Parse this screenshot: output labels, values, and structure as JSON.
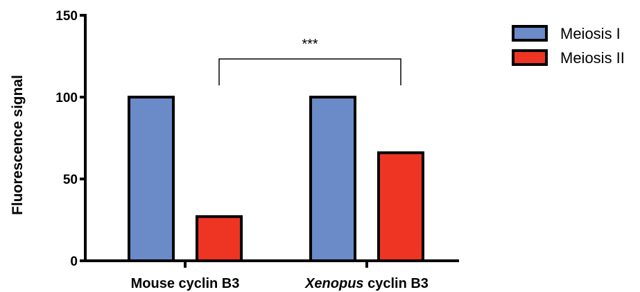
{
  "chart_data": {
    "type": "bar",
    "ylabel": "Fluorescence signal",
    "xlabel": "",
    "ylim": [
      0,
      150
    ],
    "yticks": [
      0,
      50,
      100,
      150
    ],
    "categories": [
      {
        "prefix_italic": "",
        "text": "Mouse cyclin B3"
      },
      {
        "prefix_italic": "Xenopus",
        "text": " cyclin B3"
      }
    ],
    "series": [
      {
        "name": "Meiosis I",
        "color": "#6a8ac8",
        "values": [
          100,
          100
        ]
      },
      {
        "name": "Meiosis II",
        "color": "#ee3524",
        "values": [
          27,
          66
        ]
      }
    ],
    "significance": {
      "label": "***",
      "from_category": 0,
      "to_category": 1
    },
    "legend_position": "top-right",
    "grid": false
  }
}
